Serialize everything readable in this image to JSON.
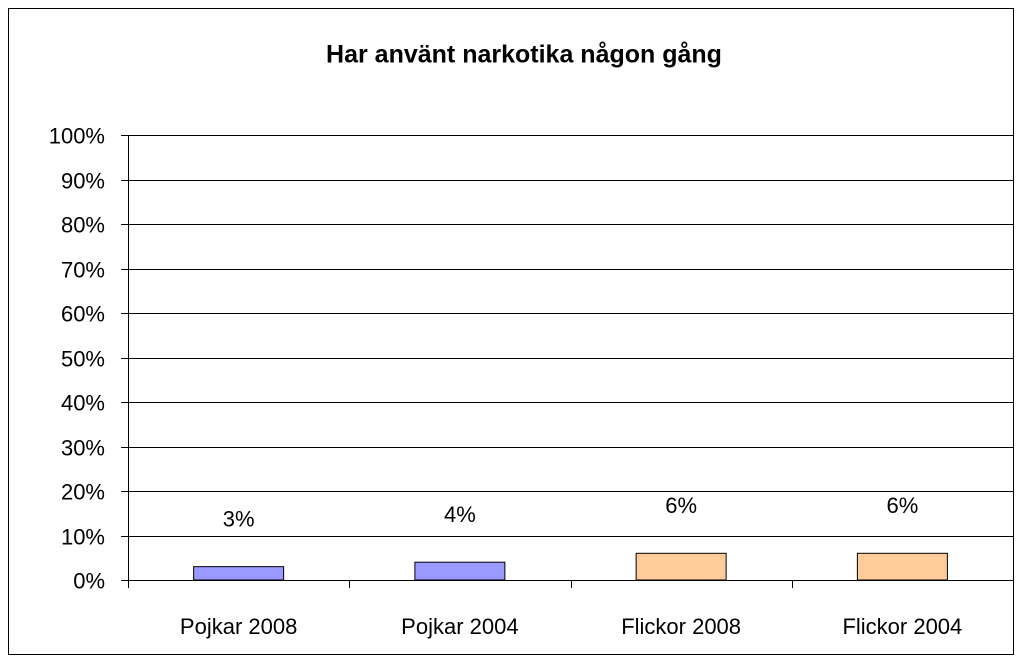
{
  "chart_data": {
    "type": "bar",
    "title": "Har använt narkotika någon gång",
    "categories": [
      "Pojkar 2008",
      "Pojkar 2004",
      "Flickor 2008",
      "Flickor 2004"
    ],
    "values": [
      3,
      4,
      6,
      6
    ],
    "value_labels": [
      "3%",
      "4%",
      "6%",
      "6%"
    ],
    "colors": [
      "#9999ff",
      "#9999ff",
      "#ffcc99",
      "#ffcc99"
    ],
    "ylim": [
      0,
      100
    ],
    "yticks": [
      {
        "value": 0,
        "label": "0%"
      },
      {
        "value": 10,
        "label": "10%"
      },
      {
        "value": 20,
        "label": "20%"
      },
      {
        "value": 30,
        "label": "30%"
      },
      {
        "value": 40,
        "label": "40%"
      },
      {
        "value": 50,
        "label": "50%"
      },
      {
        "value": 60,
        "label": "60%"
      },
      {
        "value": 70,
        "label": "70%"
      },
      {
        "value": 80,
        "label": "80%"
      },
      {
        "value": 90,
        "label": "90%"
      },
      {
        "value": 100,
        "label": "100%"
      }
    ],
    "grid": true
  }
}
